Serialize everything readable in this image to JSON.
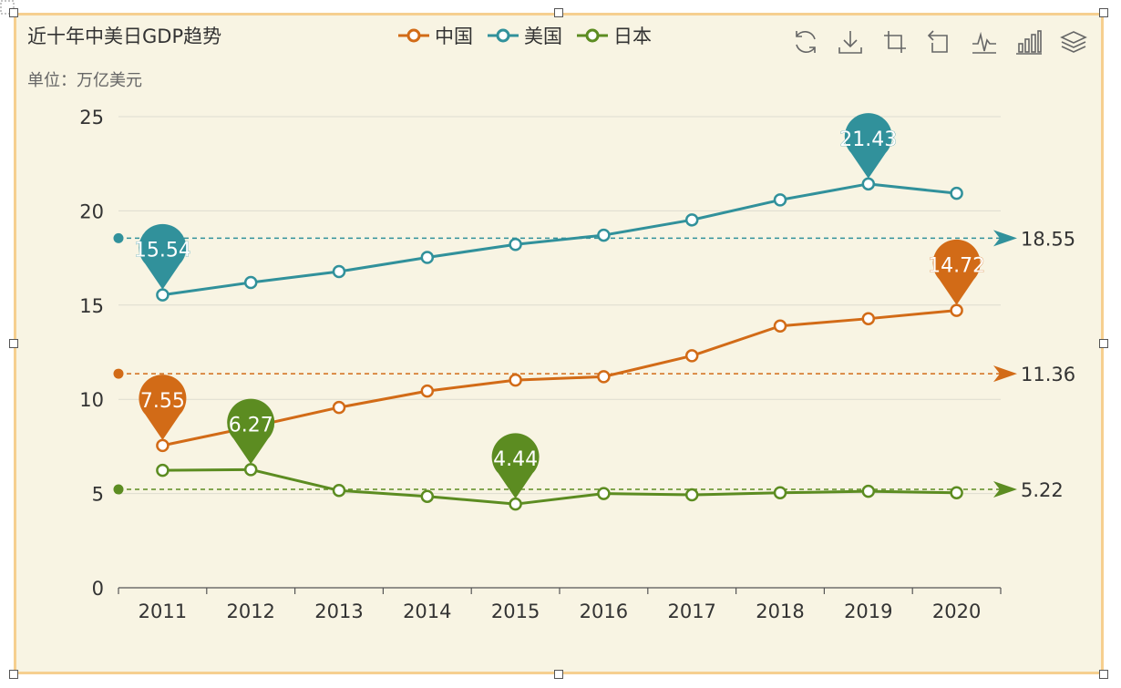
{
  "colors": {
    "china": "#d26b17",
    "usa": "#31919b",
    "japan": "#5c8c21",
    "background": "#f8f4e3",
    "frame_border": "#f6cf8f"
  },
  "toolbox": {
    "icons": [
      "restore-icon",
      "save-image-icon",
      "zoom-icon",
      "zoom-reset-icon",
      "line-chart-icon",
      "bar-chart-icon",
      "stack-icon"
    ]
  },
  "chart_data": {
    "type": "line",
    "title": "近十年中美日GDP趋势",
    "subtitle": "单位：万亿美元",
    "categories": [
      "2011",
      "2012",
      "2013",
      "2014",
      "2015",
      "2016",
      "2017",
      "2018",
      "2019",
      "2020"
    ],
    "ylim": [
      0,
      25
    ],
    "yticks": [
      "0",
      "5",
      "10",
      "15",
      "20",
      "25"
    ],
    "grid": true,
    "legend_position": "top-center",
    "series": [
      {
        "key": "china",
        "name": "中国",
        "values": [
          7.55,
          8.53,
          9.57,
          10.44,
          11.02,
          11.2,
          12.31,
          13.89,
          14.28,
          14.72
        ],
        "max_label": "14.72",
        "min_label": "7.55",
        "avg": 11.36,
        "avg_label": "11.36"
      },
      {
        "key": "usa",
        "name": "美国",
        "values": [
          15.54,
          16.2,
          16.78,
          17.53,
          18.22,
          18.71,
          19.52,
          20.58,
          21.43,
          20.93
        ],
        "max_label": "21.43",
        "min_label": "15.54",
        "avg": 18.55,
        "avg_label": "18.55"
      },
      {
        "key": "japan",
        "name": "日本",
        "values": [
          6.23,
          6.27,
          5.16,
          4.85,
          4.44,
          5.0,
          4.93,
          5.04,
          5.12,
          5.04
        ],
        "max_label": "6.27",
        "min_label": "4.44",
        "avg": 5.22,
        "avg_label": "5.22"
      }
    ]
  }
}
